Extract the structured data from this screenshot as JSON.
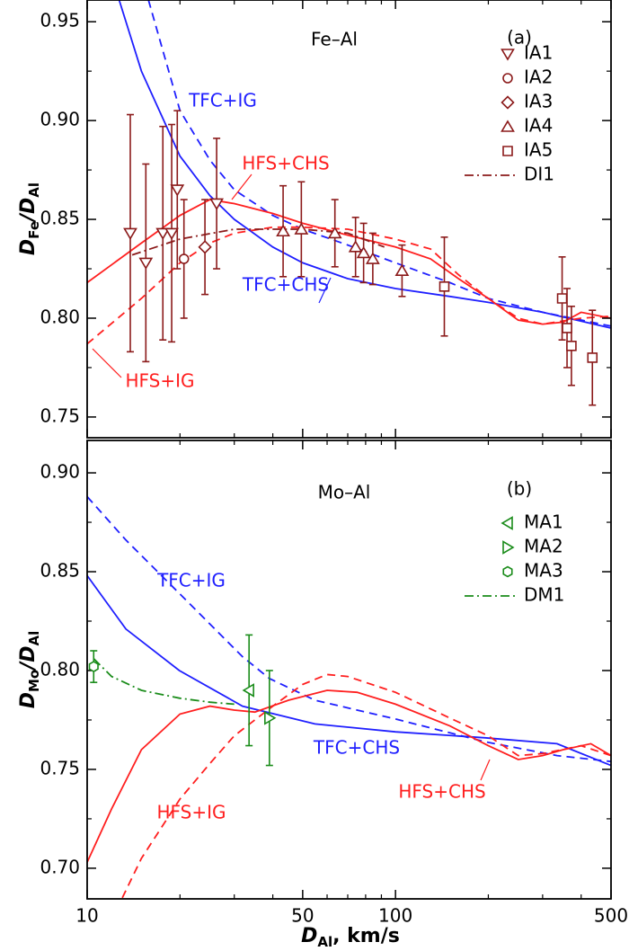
{
  "chart_data": [
    {
      "type": "line",
      "panel_label": "(a)",
      "system": "Fe–Al",
      "ylabel": [
        "D",
        "Fe",
        "/",
        "D",
        "Al"
      ],
      "ylim": [
        0.7395,
        0.961
      ],
      "yticks": [
        0.75,
        {
          "value": 0.8,
          "label": "0.80"
        },
        0.85,
        {
          "value": 0.9,
          "label": "0.90"
        },
        0.95
      ],
      "yminor": [
        0.775,
        0.825,
        0.875,
        0.925
      ],
      "curves": [
        {
          "name": "TFC+IG",
          "color": "#1f1fff",
          "style": "dashed",
          "x": [
            15.8,
            20,
            25,
            30,
            40,
            50,
            70,
            100,
            150,
            200,
            300,
            500
          ],
          "y": [
            0.961,
            0.905,
            0.88,
            0.865,
            0.852,
            0.845,
            0.837,
            0.828,
            0.818,
            0.81,
            0.803,
            0.796
          ]
        },
        {
          "name": "TFC+CHS",
          "color": "#1f1fff",
          "style": "solid",
          "x": [
            12.7,
            15,
            20,
            25,
            30,
            40,
            50,
            70,
            100,
            150,
            200,
            300,
            500
          ],
          "y": [
            0.961,
            0.925,
            0.882,
            0.862,
            0.85,
            0.836,
            0.828,
            0.82,
            0.815,
            0.811,
            0.808,
            0.803,
            0.795
          ]
        },
        {
          "name": "HFS+CHS",
          "color": "#ff1f1f",
          "style": "solid",
          "x": [
            10,
            15,
            20,
            25,
            30,
            40,
            50,
            70,
            100,
            130,
            160,
            200,
            250,
            300,
            350,
            400,
            500
          ],
          "y": [
            0.818,
            0.838,
            0.852,
            0.86,
            0.858,
            0.853,
            0.848,
            0.842,
            0.836,
            0.83,
            0.82,
            0.81,
            0.799,
            0.797,
            0.798,
            0.803,
            0.8
          ]
        },
        {
          "name": "HFS+IG",
          "color": "#ff1f1f",
          "style": "dashed",
          "x": [
            10,
            15,
            20,
            25,
            30,
            40,
            50,
            70,
            100,
            130,
            160,
            200,
            250,
            300,
            400,
            500
          ],
          "y": [
            0.787,
            0.81,
            0.828,
            0.838,
            0.843,
            0.846,
            0.846,
            0.845,
            0.84,
            0.835,
            0.822,
            0.81,
            0.8,
            0.797,
            0.8,
            0.801
          ]
        }
      ],
      "series": [
        {
          "name": "IA1",
          "marker": "tri-down",
          "color": "#8b1a1a",
          "x": [
            13.8,
            15.5,
            17.6,
            18.8,
            19.6,
            26.3
          ],
          "y": [
            0.843,
            0.828,
            0.843,
            0.843,
            0.865,
            0.858
          ],
          "err": [
            0.06,
            0.05,
            0.054,
            0.055,
            0.04,
            0.033
          ]
        },
        {
          "name": "IA2",
          "marker": "circle",
          "color": "#8b1a1a",
          "x": [
            20.6
          ],
          "y": [
            0.83
          ],
          "err": [
            0.03
          ]
        },
        {
          "name": "IA3",
          "marker": "diamond",
          "color": "#8b1a1a",
          "x": [
            24.1
          ],
          "y": [
            0.836
          ],
          "err": [
            0.024
          ]
        },
        {
          "name": "IA4",
          "marker": "tri-up",
          "color": "#8b1a1a",
          "x": [
            43.2,
            49.5,
            63.6,
            74.2,
            78.8,
            84.4,
            105
          ],
          "y": [
            0.844,
            0.845,
            0.843,
            0.836,
            0.833,
            0.83,
            0.824
          ],
          "err": [
            0.023,
            0.024,
            0.017,
            0.015,
            0.015,
            0.013,
            0.013
          ]
        },
        {
          "name": "IA5",
          "marker": "square",
          "color": "#8b1a1a",
          "x": [
            144,
            347,
            360,
            372,
            435
          ],
          "y": [
            0.816,
            0.81,
            0.795,
            0.786,
            0.78
          ],
          "err": [
            0.025,
            0.021,
            0.02,
            0.02,
            0.024
          ]
        }
      ],
      "fits": [
        {
          "name": "DI1",
          "color": "#8b1a1a",
          "style": "dashdot",
          "x": [
            14,
            20,
            30,
            50,
            70,
            92
          ],
          "y": [
            0.832,
            0.84,
            0.845,
            0.845,
            0.843,
            0.836
          ]
        }
      ]
    },
    {
      "type": "line",
      "panel_label": "(b)",
      "system": "Mo–Al",
      "ylabel": [
        "D",
        "Mo",
        "/",
        "D",
        "Al"
      ],
      "xlabel": [
        "D",
        "Al",
        ", km/s"
      ],
      "xscale": "log",
      "xlim": [
        10,
        500
      ],
      "xticks": [
        10,
        50,
        100,
        500
      ],
      "xminor": [
        20,
        30,
        40,
        60,
        70,
        80,
        90,
        200,
        300,
        400
      ],
      "ylim": [
        0.6845,
        0.9164
      ],
      "yticks": [
        {
          "value": 0.7,
          "label": "0.70"
        },
        0.75,
        {
          "value": 0.8,
          "label": "0.80"
        },
        0.85,
        {
          "value": 0.9,
          "label": "0.90"
        }
      ],
      "yminor": [
        0.725,
        0.775,
        0.825,
        0.875
      ],
      "curves": [
        {
          "name": "TFC+IG",
          "color": "#1f1fff",
          "style": "dashed",
          "x": [
            10,
            13.35,
            19.9,
            31.9,
            39,
            54.8,
            100,
            195,
            334,
            500
          ],
          "y": [
            0.888,
            0.866,
            0.839,
            0.807,
            0.796,
            0.785,
            0.7755,
            0.764,
            0.757,
            0.754
          ]
        },
        {
          "name": "TFC+CHS",
          "color": "#1f1fff",
          "style": "solid",
          "x": [
            10,
            13.35,
            19.9,
            31.9,
            54.8,
            100,
            195,
            334,
            500
          ],
          "y": [
            0.848,
            0.821,
            0.8,
            0.782,
            0.773,
            0.769,
            0.766,
            0.763,
            0.752
          ]
        },
        {
          "name": "HFS+CHS",
          "color": "#ff1f1f",
          "style": "solid",
          "x": [
            10,
            12,
            15,
            20,
            25,
            30,
            35,
            45,
            60,
            75,
            100,
            150,
            200,
            250,
            300,
            350,
            430,
            500
          ],
          "y": [
            0.703,
            0.73,
            0.76,
            0.778,
            0.782,
            0.78,
            0.779,
            0.785,
            0.79,
            0.789,
            0.783,
            0.772,
            0.762,
            0.755,
            0.757,
            0.76,
            0.763,
            0.757
          ]
        },
        {
          "name": "HFS+IG",
          "color": "#ff1f1f",
          "style": "dashed",
          "x": [
            13,
            15,
            20,
            25,
            30,
            40,
            50,
            60,
            70,
            100,
            150,
            200,
            250,
            300,
            400,
            500
          ],
          "y": [
            0.685,
            0.705,
            0.735,
            0.753,
            0.767,
            0.782,
            0.793,
            0.798,
            0.797,
            0.789,
            0.776,
            0.767,
            0.757,
            0.758,
            0.762,
            0.757
          ]
        }
      ],
      "series": [
        {
          "name": "MA1",
          "marker": "tri-left",
          "color": "#1a8c1a",
          "x": [
            33.5
          ],
          "y": [
            0.79
          ],
          "err": [
            0.028
          ]
        },
        {
          "name": "MA2",
          "marker": "tri-right",
          "color": "#1a8c1a",
          "x": [
            39
          ],
          "y": [
            0.776
          ],
          "err": [
            0.024
          ]
        },
        {
          "name": "MA3",
          "marker": "hexagon",
          "color": "#1a8c1a",
          "x": [
            10.5
          ],
          "y": [
            0.802
          ],
          "err": [
            0.008
          ]
        }
      ],
      "fits": [
        {
          "name": "DM1",
          "color": "#1a8c1a",
          "style": "dashdot",
          "x": [
            10.5,
            12,
            15,
            20,
            25,
            30
          ],
          "y": [
            0.806,
            0.797,
            0.79,
            0.786,
            0.784,
            0.783
          ]
        }
      ]
    }
  ]
}
